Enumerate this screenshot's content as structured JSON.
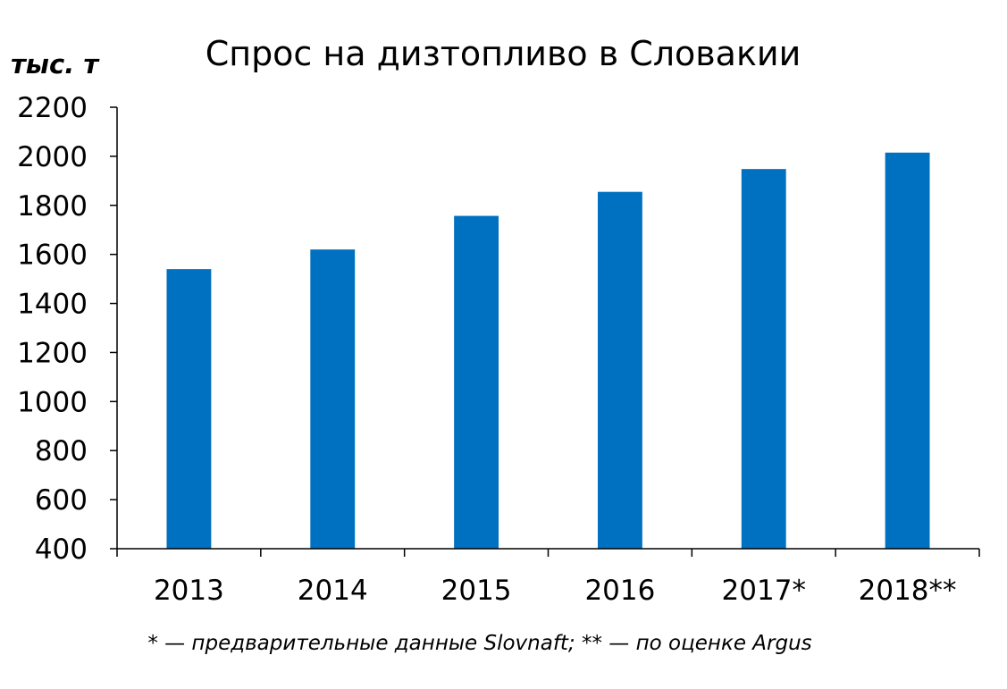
{
  "chart_data": {
    "type": "bar",
    "title": "Спрос на дизтопливо в Словакии",
    "ylabel": "тыс. т",
    "xlabel": "",
    "categories": [
      "2013",
      "2014",
      "2015",
      "2016",
      "2017*",
      "2018**"
    ],
    "values": [
      1540,
      1620,
      1757,
      1855,
      1948,
      2015
    ],
    "ylim": [
      400,
      2200
    ],
    "yticks": [
      400,
      600,
      800,
      1000,
      1200,
      1400,
      1600,
      1800,
      2000,
      2200
    ],
    "ytick_labels": [
      "400",
      "600",
      "800",
      "1000",
      "1200",
      "1400",
      "1600",
      "1800",
      "2000",
      "2200"
    ],
    "grid": false,
    "legend": "none",
    "bar_color": "#0070C0",
    "footnote": "* — предварительные данные Slovnaft; ** — по оценке Argus"
  }
}
